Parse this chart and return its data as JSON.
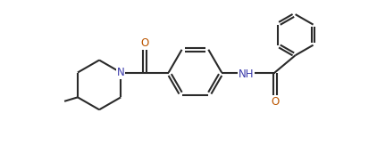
{
  "background": "#ffffff",
  "line_color": "#2a2a2a",
  "N_color": "#3a3aaa",
  "O_color": "#bb5500",
  "lw": 1.5,
  "figsize": [
    4.22,
    1.63
  ],
  "dpi": 100,
  "xlim": [
    -0.5,
    10.5
  ],
  "ylim": [
    -0.3,
    4.0
  ]
}
